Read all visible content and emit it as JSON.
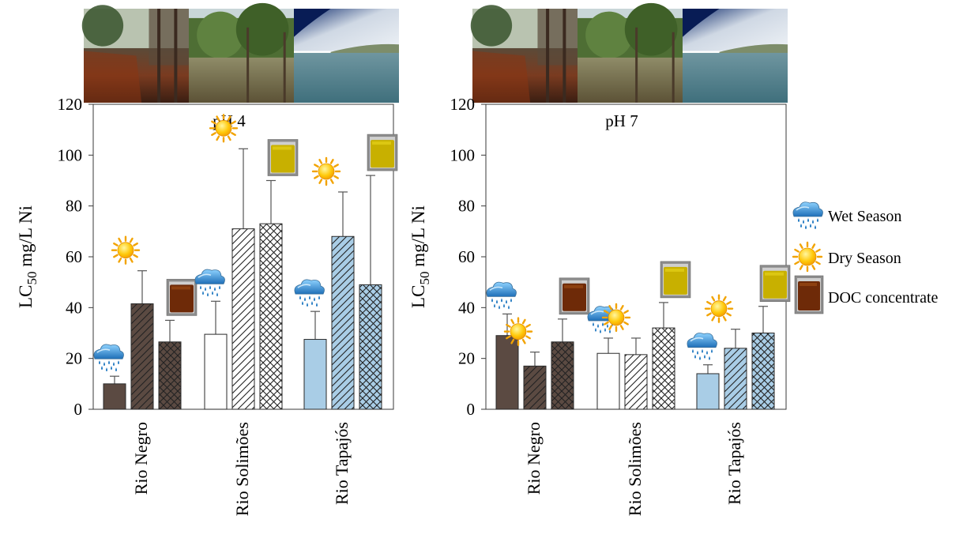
{
  "colors": {
    "rio_negro": "#5b4a42",
    "rio_solimoes": "#ffffff",
    "rio_tapajos": "#a9cde6",
    "outline": "#2a2a2a",
    "error_bar": "#555555"
  },
  "legend": {
    "items": [
      {
        "label": "Wet Season",
        "icon": "rain-cloud-icon"
      },
      {
        "label": "Dry Season",
        "icon": "sun-icon"
      },
      {
        "label": "DOC concentrate",
        "icon": "brown-jar-icon"
      }
    ]
  },
  "photos": [
    "rio-negro-photo",
    "rio-solimoes-photo",
    "rio-tapajos-photo"
  ],
  "chart_data": [
    {
      "type": "bar",
      "title": "pH 4",
      "ylabel": {
        "main": "LC",
        "sub": "50",
        "rest": " mg/L Ni"
      },
      "ylim": [
        0,
        120
      ],
      "yticks": [
        0,
        20,
        40,
        60,
        80,
        100,
        120
      ],
      "categories": [
        "Rio Negro",
        "Rio Solimões",
        "Rio Tapajós"
      ],
      "patterns": [
        "solid",
        "diagonal",
        "crosshatch"
      ],
      "series": [
        {
          "name": "Wet Season",
          "values": [
            10,
            29.5,
            27.5
          ],
          "errors": [
            3,
            13,
            11
          ]
        },
        {
          "name": "Dry Season",
          "values": [
            41.5,
            71,
            68
          ],
          "errors": [
            13,
            31.5,
            17.5
          ]
        },
        {
          "name": "DOC concentrate",
          "values": [
            26.5,
            73,
            49
          ],
          "errors": [
            8.5,
            17,
            43
          ]
        }
      ],
      "markers": [
        [
          "rain-cloud-icon",
          "sun-icon",
          "brown-jar-icon"
        ],
        [
          "rain-cloud-icon",
          "sun-icon",
          "yellow-jar-icon"
        ],
        [
          "rain-cloud-icon",
          "sun-icon",
          "yellow-jar-icon"
        ]
      ]
    },
    {
      "type": "bar",
      "title": "pH 7",
      "ylabel": {
        "main": "LC",
        "sub": "50",
        "rest": " mg/L Ni"
      },
      "ylim": [
        0,
        120
      ],
      "yticks": [
        0,
        20,
        40,
        60,
        80,
        100,
        120
      ],
      "categories": [
        "Rio Negro",
        "Rio Solimões",
        "Rio Tapajós"
      ],
      "patterns": [
        "solid",
        "diagonal",
        "crosshatch"
      ],
      "series": [
        {
          "name": "Wet Season",
          "values": [
            29,
            22,
            14
          ],
          "errors": [
            8.5,
            6,
            3.5
          ]
        },
        {
          "name": "Dry Season",
          "values": [
            17,
            21.5,
            24
          ],
          "errors": [
            5.5,
            6.5,
            7.5
          ]
        },
        {
          "name": "DOC concentrate",
          "values": [
            26.5,
            32,
            30
          ],
          "errors": [
            9,
            10,
            10.5
          ]
        }
      ],
      "markers": [
        [
          "rain-cloud-icon",
          "sun-icon",
          "brown-jar-icon"
        ],
        [
          "rain-cloud-icon",
          "sun-icon",
          "yellow-jar-icon"
        ],
        [
          "rain-cloud-icon",
          "sun-icon",
          "yellow-jar-icon"
        ]
      ]
    }
  ]
}
